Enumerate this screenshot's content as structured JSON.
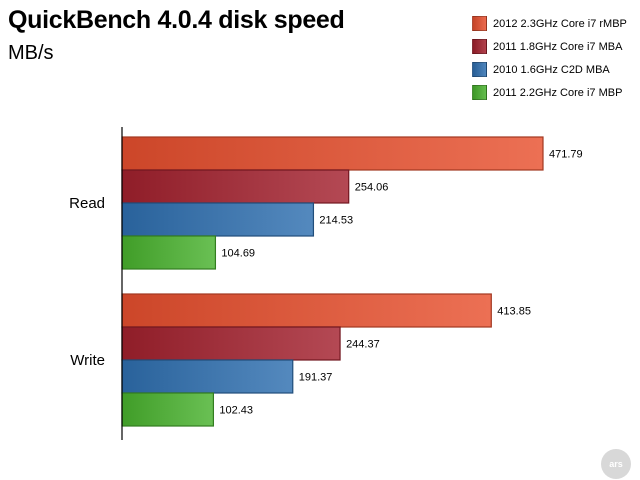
{
  "title": "QuickBench 4.0.4 disk speed",
  "subtitle": "MB/s",
  "chart_data": {
    "type": "bar",
    "orientation": "horizontal",
    "title": "QuickBench 4.0.4 disk speed",
    "ylabel": "MB/s",
    "categories": [
      "Read",
      "Write"
    ],
    "xlim": [
      0,
      500
    ],
    "grid": false,
    "legend_position": "top-right",
    "data_labels": true,
    "series": [
      {
        "name": "2012 2.3GHz Core i7 rMBP",
        "values": [
          471.79,
          413.85
        ],
        "value_labels": [
          "471.79",
          "413.85"
        ],
        "color": "#e8502f"
      },
      {
        "name": "2011 1.8GHz Core i7 MBA",
        "values": [
          254.06,
          244.37
        ],
        "value_labels": [
          "254.06",
          "244.37"
        ],
        "color": "#a3212e"
      },
      {
        "name": "2010 1.6GHz C2D MBA",
        "values": [
          214.53,
          191.37
        ],
        "value_labels": [
          "214.53",
          "191.37"
        ],
        "color": "#2f6fb0"
      },
      {
        "name": "2011 2.2GHz Core i7 MBP",
        "values": [
          104.69,
          102.43
        ],
        "value_labels": [
          "104.69",
          "102.43"
        ],
        "color": "#49b22e"
      }
    ]
  },
  "watermark": "ars"
}
